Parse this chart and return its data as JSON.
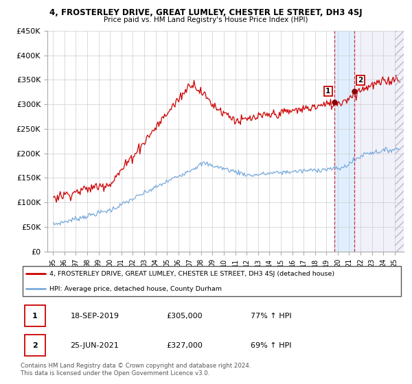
{
  "title": "4, FROSTERLEY DRIVE, GREAT LUMLEY, CHESTER LE STREET, DH3 4SJ",
  "subtitle": "Price paid vs. HM Land Registry's House Price Index (HPI)",
  "legend_line1": "4, FROSTERLEY DRIVE, GREAT LUMLEY, CHESTER LE STREET, DH3 4SJ (detached house)",
  "legend_line2": "HPI: Average price, detached house, County Durham",
  "footnote": "Contains HM Land Registry data © Crown copyright and database right 2024.\nThis data is licensed under the Open Government Licence v3.0.",
  "table_rows": [
    {
      "num": "1",
      "date": "18-SEP-2019",
      "price": "£305,000",
      "pct": "77% ↑ HPI"
    },
    {
      "num": "2",
      "date": "25-JUN-2021",
      "price": "£327,000",
      "pct": "69% ↑ HPI"
    }
  ],
  "red_color": "#cc0000",
  "blue_color": "#7aaadd",
  "highlight_color": "#ddeeff",
  "sale1_year": 2019,
  "sale1_month": 9,
  "sale1_price": 305000,
  "sale2_year": 2021,
  "sale2_month": 6,
  "sale2_price": 327000,
  "ylim": [
    0,
    450000
  ],
  "yticks": [
    0,
    50000,
    100000,
    150000,
    200000,
    250000,
    300000,
    350000,
    400000,
    450000
  ],
  "ytick_labels": [
    "£0",
    "£50K",
    "£100K",
    "£150K",
    "£200K",
    "£250K",
    "£300K",
    "£350K",
    "£400K",
    "£450K"
  ],
  "start_year": 1995,
  "end_year": 2025
}
